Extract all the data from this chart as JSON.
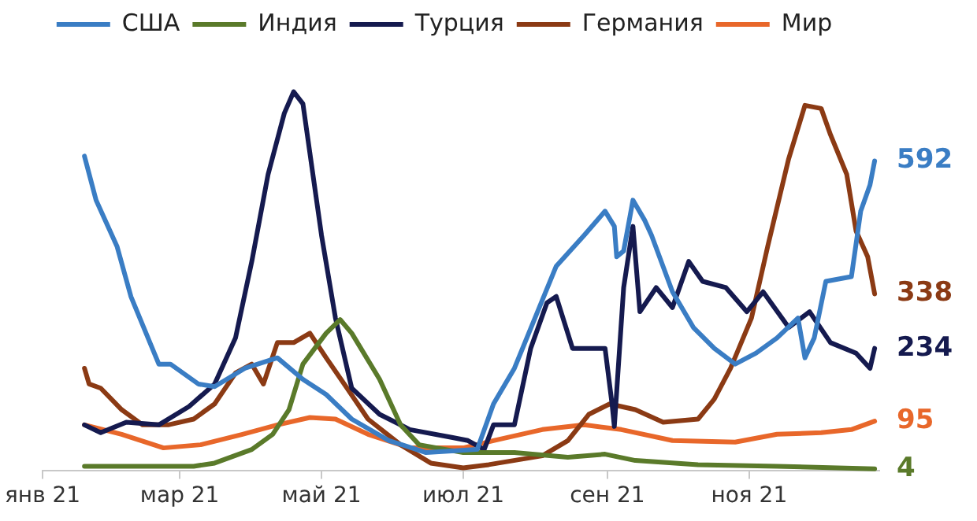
{
  "chart_data": {
    "type": "line",
    "legend": "top",
    "grid": false,
    "marker": "none",
    "line_style": "solid",
    "xlim": [
      "2021-01-01",
      "2021-12-27"
    ],
    "xticks": [
      {
        "value": "2021-01-01",
        "label": "янв 21"
      },
      {
        "value": "2021-03-01",
        "label": "мар 21"
      },
      {
        "value": "2021-05-01",
        "label": "май 21"
      },
      {
        "value": "2021-07-01",
        "label": "июл 21"
      },
      {
        "value": "2021-09-01",
        "label": "сен 21"
      },
      {
        "value": "2021-11-01",
        "label": "ноя 21"
      }
    ],
    "tick_labels": "x",
    "series": [
      {
        "name": "США",
        "color": "#3a7dc4",
        "x": [
          "2021-01-19",
          "2021-01-24",
          "2021-02-02",
          "2021-02-08",
          "2021-02-20",
          "2021-02-25",
          "2021-03-09",
          "2021-03-16",
          "2021-03-29",
          "2021-04-12",
          "2021-04-23",
          "2021-05-03",
          "2021-05-14",
          "2021-05-30",
          "2021-06-15",
          "2021-07-07",
          "2021-07-14",
          "2021-07-23",
          "2021-08-10",
          "2021-08-22",
          "2021-08-31",
          "2021-09-04",
          "2021-09-05",
          "2021-09-08",
          "2021-09-12",
          "2021-09-17",
          "2021-09-20",
          "2021-09-29",
          "2021-10-08",
          "2021-10-17",
          "2021-10-26",
          "2021-11-04",
          "2021-11-13",
          "2021-11-22",
          "2021-11-25",
          "2021-11-29",
          "2021-12-04",
          "2021-12-15",
          "2021-12-19",
          "2021-12-23",
          "2021-12-25"
        ],
        "values": [
          601,
          517,
          429,
          333,
          204,
          204,
          166,
          161,
          196,
          216,
          175,
          146,
          99,
          58,
          35,
          41,
          128,
          196,
          391,
          450,
          496,
          467,
          409,
          420,
          517,
          479,
          450,
          342,
          274,
          234,
          204,
          225,
          254,
          292,
          216,
          254,
          362,
          371,
          496,
          546,
          592
        ],
        "value_labels": [
          null,
          null,
          null,
          null,
          null,
          null,
          null,
          null,
          null,
          null,
          null,
          null,
          null,
          null,
          null,
          null,
          null,
          null,
          null,
          null,
          null,
          null,
          null,
          null,
          null,
          null,
          null,
          null,
          null,
          null,
          null,
          null,
          null,
          null,
          null,
          null,
          null,
          null,
          null,
          null,
          "592"
        ]
      },
      {
        "name": "Индия",
        "color": "#5a7a2a",
        "x": [
          "2021-01-19",
          "2021-03-07",
          "2021-03-16",
          "2021-04-01",
          "2021-04-10",
          "2021-04-17",
          "2021-04-23",
          "2021-05-03",
          "2021-05-09",
          "2021-05-14",
          "2021-05-26",
          "2021-06-04",
          "2021-06-12",
          "2021-07-01",
          "2021-07-23",
          "2021-08-15",
          "2021-08-31",
          "2021-09-13",
          "2021-10-10",
          "2021-11-13",
          "2021-12-25"
        ],
        "values": [
          9,
          9,
          15,
          41,
          70,
          117,
          204,
          263,
          289,
          263,
          175,
          88,
          50,
          35,
          35,
          26,
          32,
          20,
          12,
          9,
          4
        ],
        "value_labels": [
          null,
          null,
          null,
          null,
          null,
          null,
          null,
          null,
          null,
          null,
          null,
          null,
          null,
          null,
          null,
          null,
          null,
          null,
          null,
          null,
          "4"
        ]
      },
      {
        "name": "Турция",
        "color": "#151a4f",
        "x": [
          "2021-01-19",
          "2021-01-26",
          "2021-02-06",
          "2021-02-20",
          "2021-03-05",
          "2021-03-16",
          "2021-03-25",
          "2021-04-01",
          "2021-04-08",
          "2021-04-15",
          "2021-04-19",
          "2021-04-23",
          "2021-05-01",
          "2021-05-07",
          "2021-05-14",
          "2021-05-26",
          "2021-06-08",
          "2021-06-26",
          "2021-07-03",
          "2021-07-10",
          "2021-07-14",
          "2021-07-23",
          "2021-07-30",
          "2021-08-06",
          "2021-08-10",
          "2021-08-17",
          "2021-08-31",
          "2021-09-03",
          "2021-09-04",
          "2021-09-08",
          "2021-09-12",
          "2021-09-15",
          "2021-09-22",
          "2021-09-29",
          "2021-10-06",
          "2021-10-12",
          "2021-10-22",
          "2021-10-31",
          "2021-11-07",
          "2021-11-18",
          "2021-11-27",
          "2021-12-06",
          "2021-12-17",
          "2021-12-23",
          "2021-12-25"
        ],
        "values": [
          88,
          73,
          93,
          88,
          123,
          166,
          254,
          400,
          566,
          683,
          724,
          701,
          450,
          292,
          158,
          108,
          79,
          64,
          58,
          41,
          88,
          88,
          234,
          321,
          333,
          234,
          234,
          128,
          85,
          350,
          467,
          304,
          350,
          312,
          400,
          362,
          350,
          304,
          342,
          274,
          304,
          245,
          225,
          196,
          234
        ],
        "value_labels": [
          null,
          null,
          null,
          null,
          null,
          null,
          null,
          null,
          null,
          null,
          null,
          null,
          null,
          null,
          null,
          null,
          null,
          null,
          null,
          null,
          null,
          null,
          null,
          null,
          null,
          null,
          null,
          null,
          null,
          null,
          null,
          null,
          null,
          null,
          null,
          null,
          null,
          null,
          null,
          null,
          null,
          null,
          null,
          null,
          "234"
        ]
      },
      {
        "name": "Германия",
        "color": "#8b3a14",
        "x": [
          "2021-01-19",
          "2021-01-21",
          "2021-01-26",
          "2021-02-04",
          "2021-02-13",
          "2021-02-24",
          "2021-03-07",
          "2021-03-16",
          "2021-03-25",
          "2021-04-01",
          "2021-04-06",
          "2021-04-12",
          "2021-04-19",
          "2021-04-26",
          "2021-05-03",
          "2021-05-12",
          "2021-05-21",
          "2021-06-04",
          "2021-06-17",
          "2021-07-01",
          "2021-07-12",
          "2021-08-04",
          "2021-08-15",
          "2021-08-24",
          "2021-09-02",
          "2021-09-13",
          "2021-09-25",
          "2021-10-10",
          "2021-10-17",
          "2021-10-24",
          "2021-11-02",
          "2021-11-09",
          "2021-11-18",
          "2021-11-25",
          "2021-12-02",
          "2021-12-06",
          "2021-12-13",
          "2021-12-17",
          "2021-12-22",
          "2021-12-25"
        ],
        "values": [
          196,
          166,
          158,
          117,
          88,
          88,
          99,
          128,
          187,
          204,
          166,
          245,
          245,
          263,
          216,
          158,
          99,
          50,
          15,
          6,
          12,
          29,
          58,
          108,
          128,
          117,
          93,
          99,
          137,
          196,
          292,
          429,
          596,
          698,
          692,
          642,
          566,
          458,
          409,
          338
        ],
        "value_labels": [
          null,
          null,
          null,
          null,
          null,
          null,
          null,
          null,
          null,
          null,
          null,
          null,
          null,
          null,
          null,
          null,
          null,
          null,
          null,
          null,
          null,
          null,
          null,
          null,
          null,
          null,
          null,
          null,
          null,
          null,
          null,
          null,
          null,
          null,
          null,
          null,
          null,
          null,
          null,
          "338"
        ]
      },
      {
        "name": "Мир",
        "color": "#e8672a",
        "x": [
          "2021-01-19",
          "2021-02-04",
          "2021-02-22",
          "2021-03-10",
          "2021-03-28",
          "2021-04-12",
          "2021-04-26",
          "2021-05-07",
          "2021-05-21",
          "2021-06-08",
          "2021-07-01",
          "2021-07-14",
          "2021-08-04",
          "2021-08-22",
          "2021-09-07",
          "2021-09-29",
          "2021-10-26",
          "2021-11-13",
          "2021-12-02",
          "2021-12-15",
          "2021-12-25"
        ],
        "values": [
          88,
          70,
          44,
          50,
          70,
          88,
          102,
          99,
          70,
          44,
          44,
          58,
          79,
          88,
          79,
          58,
          55,
          70,
          73,
          79,
          95
        ],
        "value_labels": [
          null,
          null,
          null,
          null,
          null,
          null,
          null,
          null,
          null,
          null,
          null,
          null,
          null,
          null,
          null,
          null,
          null,
          null,
          null,
          null,
          "95"
        ]
      }
    ]
  }
}
